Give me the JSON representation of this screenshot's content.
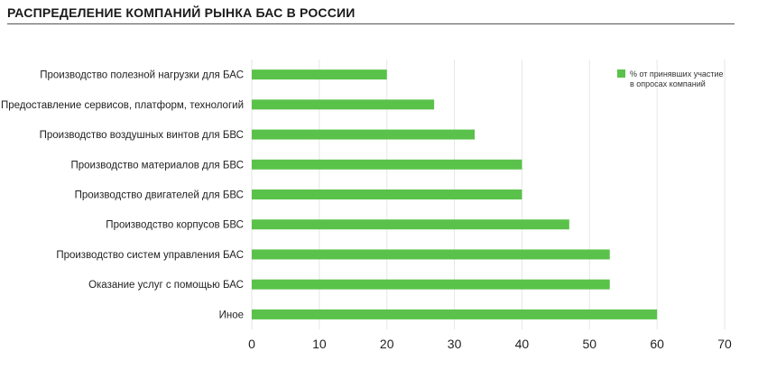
{
  "title": "РАСПРЕДЕЛЕНИЕ КОМПАНИЙ РЫНКА БАС В РОССИИ",
  "colors": {
    "bar": "#5ac24a",
    "grid": "#e6e6e6",
    "rule": "#555555"
  },
  "chart_data": {
    "type": "bar",
    "orientation": "horizontal",
    "categories": [
      "Производство полезной нагрузки для БАС",
      "Предоставление сервисов, платформ, технологий",
      "Производство воздушных винтов для БВС",
      "Производство материалов для БВС",
      "Производство двигателей для БВС",
      "Производство корпусов БВС",
      "Производство систем управления БАС",
      "Оказание услуг с помощью БАС",
      "Иное"
    ],
    "series": [
      {
        "name": "% от принявших участие в опросах компаний",
        "values": [
          20,
          27,
          33,
          40,
          40,
          47,
          53,
          53,
          60
        ]
      }
    ],
    "xlim": [
      0,
      70
    ],
    "xticks": [
      "0",
      "10",
      "20",
      "30",
      "40",
      "50",
      "60",
      "70"
    ],
    "grid": "vertical",
    "legend": {
      "position": "top-right",
      "lines": [
        "% от принявших участие",
        "в опросах компаний"
      ]
    }
  }
}
